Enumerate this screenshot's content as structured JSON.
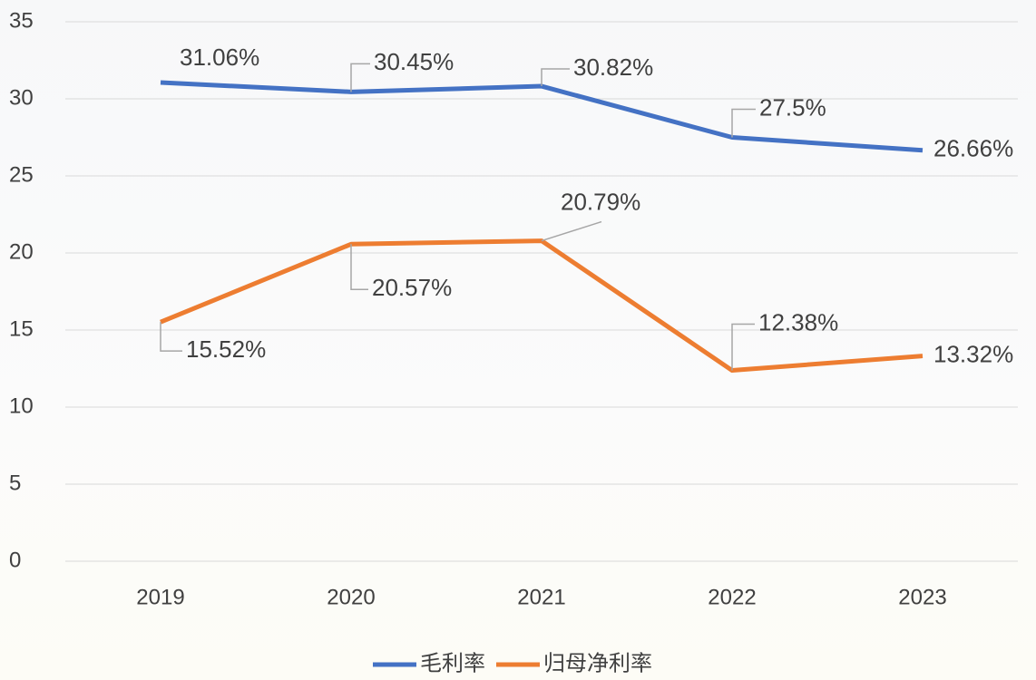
{
  "chart_data": {
    "type": "line",
    "categories": [
      "2019",
      "2020",
      "2021",
      "2022",
      "2023"
    ],
    "series": [
      {
        "name": "毛利率",
        "color": "#4472c4",
        "values": [
          31.06,
          30.45,
          30.82,
          27.5,
          26.66
        ],
        "value_labels": [
          "31.06%",
          "30.45%",
          "30.82%",
          "27.5%",
          "26.66%"
        ]
      },
      {
        "name": "归母净利率",
        "color": "#ed7d31",
        "values": [
          15.52,
          20.57,
          20.79,
          12.38,
          13.32
        ],
        "value_labels": [
          "15.52%",
          "20.57%",
          "20.79%",
          "12.38%",
          "13.32%"
        ]
      }
    ],
    "ylim": [
      0,
      35
    ],
    "yticks": [
      0,
      5,
      10,
      15,
      20,
      25,
      30,
      35
    ],
    "grid": true,
    "legend": "bottom"
  }
}
